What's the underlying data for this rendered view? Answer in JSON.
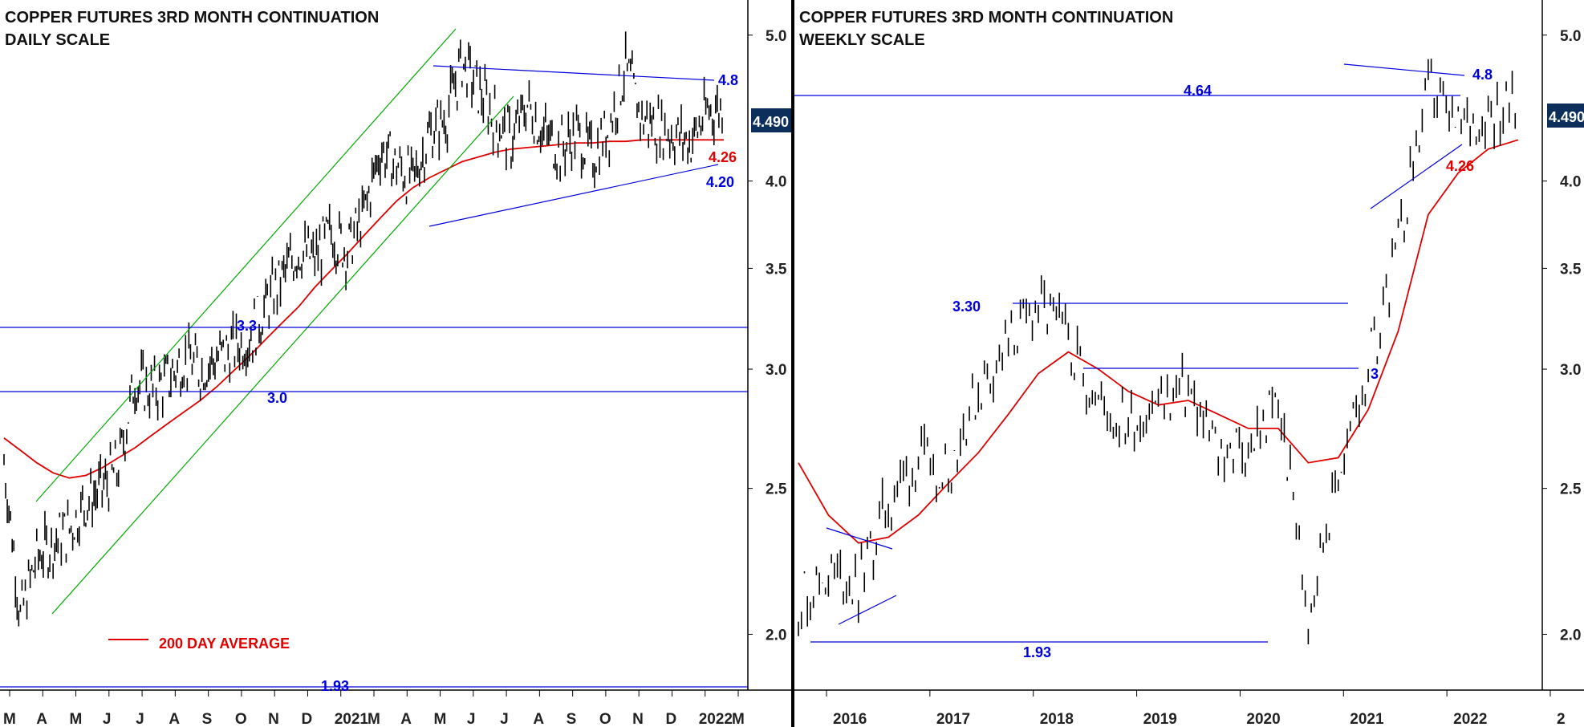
{
  "chart_data": [
    {
      "type": "line",
      "title": "COPPER FUTURES 3RD MONTH CONTINUATION",
      "subtitle": "DAILY SCALE",
      "scale": "log",
      "ylim": [
        1.85,
        5.25
      ],
      "y_ticks": [
        "5.0",
        "4.0",
        "3.5",
        "3.0",
        "2.5",
        "2.0"
      ],
      "x_ticks": [
        "M",
        "A",
        "M",
        "J",
        "J",
        "A",
        "S",
        "O",
        "N",
        "D",
        "2021",
        "M",
        "A",
        "M",
        "J",
        "J",
        "A",
        "S",
        "O",
        "N",
        "D",
        "2022",
        "M"
      ],
      "last_price_label": "4.490",
      "colors": {
        "price": "#000000",
        "average": "#e00000",
        "levels": "#0000dd",
        "channel": "#00aa00"
      },
      "series": [
        {
          "name": "200 DAY AVERAGE",
          "style": "red-line"
        }
      ],
      "x": [
        "2020-03",
        "2020-03",
        "2020-04",
        "2020-04",
        "2020-05",
        "2020-05",
        "2020-06",
        "2020-06",
        "2020-07",
        "2020-07",
        "2020-08",
        "2020-08",
        "2020-09",
        "2020-09",
        "2020-10",
        "2020-10",
        "2020-11",
        "2020-11",
        "2020-12",
        "2020-12",
        "2021-01",
        "2021-01",
        "2021-02",
        "2021-02",
        "2021-03",
        "2021-03",
        "2021-04",
        "2021-04",
        "2021-05",
        "2021-05",
        "2021-06",
        "2021-06",
        "2021-07",
        "2021-07",
        "2021-08",
        "2021-08",
        "2021-09",
        "2021-09",
        "2021-10",
        "2021-10",
        "2021-11",
        "2021-11",
        "2021-12",
        "2021-12",
        "2022-01"
      ],
      "price": [
        2.6,
        2.05,
        2.25,
        2.3,
        2.35,
        2.45,
        2.5,
        2.58,
        2.95,
        2.9,
        2.95,
        3.05,
        3.0,
        3.05,
        3.1,
        3.15,
        3.3,
        3.45,
        3.6,
        3.55,
        3.7,
        3.6,
        3.8,
        4.2,
        4.1,
        4.0,
        4.3,
        4.4,
        4.8,
        4.6,
        4.4,
        4.25,
        4.5,
        4.3,
        4.2,
        4.3,
        4.15,
        4.35,
        4.75,
        4.4,
        4.35,
        4.3,
        4.25,
        4.45,
        4.49
      ],
      "average": [
        2.7,
        2.65,
        2.6,
        2.56,
        2.54,
        2.55,
        2.58,
        2.62,
        2.66,
        2.71,
        2.76,
        2.81,
        2.86,
        2.92,
        2.99,
        3.06,
        3.14,
        3.22,
        3.3,
        3.4,
        3.49,
        3.58,
        3.68,
        3.78,
        3.88,
        3.96,
        4.02,
        4.07,
        4.12,
        4.15,
        4.18,
        4.2,
        4.21,
        4.22,
        4.23,
        4.24,
        4.24,
        4.25,
        4.25,
        4.26,
        4.26,
        4.26,
        4.26,
        4.26,
        4.26
      ],
      "levels": [
        {
          "label": "4.8",
          "kind": "trendline"
        },
        {
          "label": "4.26",
          "kind": "average"
        },
        {
          "label": "4.20",
          "kind": "trendline"
        },
        {
          "label": "3.3",
          "kind": "horizontal"
        },
        {
          "label": "3.0",
          "kind": "horizontal"
        },
        {
          "label": "1.93",
          "kind": "horizontal"
        }
      ]
    },
    {
      "type": "line",
      "title": "COPPER FUTURES 3RD MONTH CONTINUATION",
      "subtitle": "WEEKLY SCALE",
      "scale": "log",
      "ylim": [
        1.85,
        5.25
      ],
      "y_ticks": [
        "5.0",
        "4.0",
        "3.5",
        "3.0",
        "2.5",
        "2.0"
      ],
      "x_ticks": [
        "2016",
        "2017",
        "2018",
        "2019",
        "2020",
        "2021",
        "2022",
        "2"
      ],
      "last_price_label": "4.490",
      "colors": {
        "price": "#000000",
        "average": "#e00000",
        "levels": "#0000dd"
      },
      "x": [
        "2016-01",
        "2016-04",
        "2016-07",
        "2016-10",
        "2017-01",
        "2017-04",
        "2017-07",
        "2017-10",
        "2018-01",
        "2018-04",
        "2018-07",
        "2018-10",
        "2019-01",
        "2019-04",
        "2019-07",
        "2019-10",
        "2020-01",
        "2020-03",
        "2020-06",
        "2020-09",
        "2021-01",
        "2021-04",
        "2021-07",
        "2021-10",
        "2022-01"
      ],
      "price": [
        2.1,
        2.2,
        2.15,
        2.45,
        2.6,
        2.58,
        2.9,
        3.1,
        3.3,
        3.15,
        2.85,
        2.75,
        2.85,
        2.9,
        2.65,
        2.65,
        2.85,
        2.05,
        2.55,
        3.0,
        3.6,
        4.6,
        4.3,
        4.45,
        4.49
      ],
      "average": [
        2.6,
        2.4,
        2.3,
        2.32,
        2.4,
        2.52,
        2.64,
        2.8,
        2.98,
        3.08,
        3.0,
        2.9,
        2.84,
        2.86,
        2.8,
        2.74,
        2.74,
        2.6,
        2.62,
        2.82,
        3.18,
        3.8,
        4.05,
        4.2,
        4.26
      ],
      "levels": [
        {
          "label": "4.8",
          "kind": "trendline"
        },
        {
          "label": "4.64",
          "kind": "horizontal"
        },
        {
          "label": "4.26",
          "kind": "average"
        },
        {
          "label": "3.30",
          "kind": "horizontal"
        },
        {
          "label": "3",
          "kind": "horizontal"
        },
        {
          "label": "1.93",
          "kind": "horizontal"
        }
      ]
    }
  ]
}
